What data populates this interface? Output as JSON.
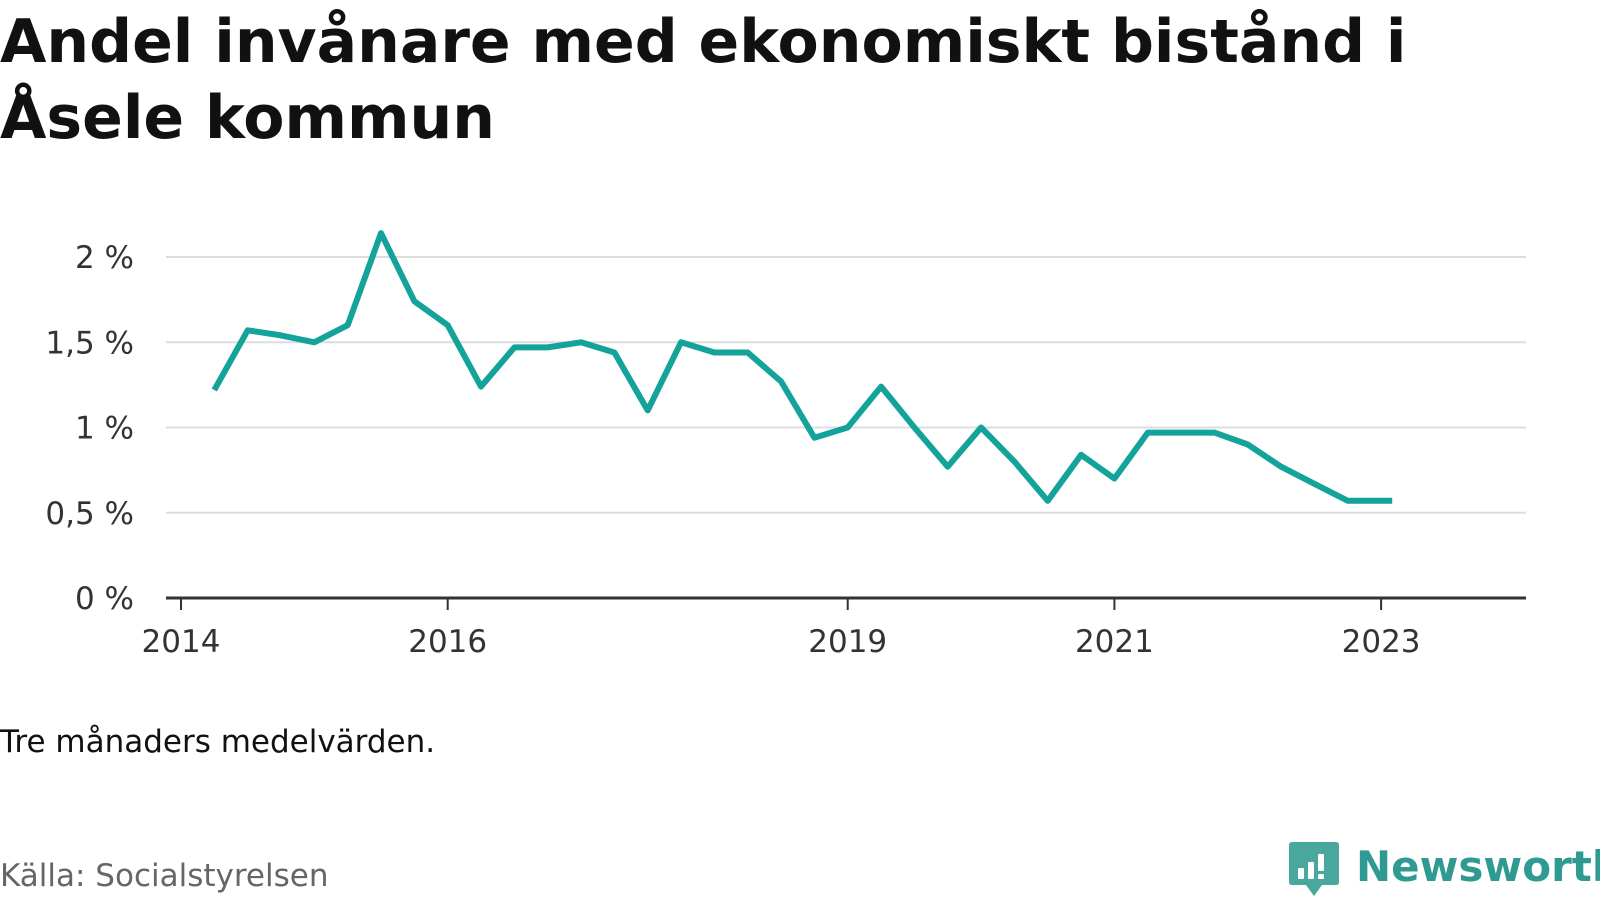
{
  "title": "Andel invånare med ekonomiskt bistånd i Åsele kommun",
  "note": "Tre månaders medelvärden.",
  "source": "Källa: Socialstyrelsen",
  "brand": {
    "name": "Newsworthy",
    "color": "#2e9a92"
  },
  "colors": {
    "line": "#14a39a",
    "grid": "#dddddd",
    "axis": "#333333"
  },
  "chart_data": {
    "type": "line",
    "title": "Andel invånare med ekonomiskt bistånd i Åsele kommun",
    "xlabel": "",
    "ylabel": "",
    "ylim": [
      0,
      2
    ],
    "xlim": [
      "2014-01",
      "2023-09"
    ],
    "y_ticks": [
      0,
      0.5,
      1,
      1.5,
      2
    ],
    "y_tick_labels": [
      "0 %",
      "0,5 %",
      "1 %",
      "1,5 %",
      "2 %"
    ],
    "x_ticks": [
      "2014-01",
      "2016-01",
      "2019-01",
      "2021-01",
      "2023-01"
    ],
    "x_tick_labels": [
      "2014",
      "2016",
      "2019",
      "2021",
      "2023"
    ],
    "grid": true,
    "series": [
      {
        "values": [
          {
            "x": "2014-04",
            "y": 1.22
          },
          {
            "x": "2014-07",
            "y": 1.57
          },
          {
            "x": "2014-10",
            "y": 1.54
          },
          {
            "x": "2015-01",
            "y": 1.5
          },
          {
            "x": "2015-04",
            "y": 1.6
          },
          {
            "x": "2015-07",
            "y": 2.14
          },
          {
            "x": "2015-10",
            "y": 1.74
          },
          {
            "x": "2016-01",
            "y": 1.6
          },
          {
            "x": "2016-04",
            "y": 1.24
          },
          {
            "x": "2016-07",
            "y": 1.47
          },
          {
            "x": "2016-10",
            "y": 1.47
          },
          {
            "x": "2017-01",
            "y": 1.5
          },
          {
            "x": "2017-04",
            "y": 1.44
          },
          {
            "x": "2017-07",
            "y": 1.1
          },
          {
            "x": "2017-10",
            "y": 1.5
          },
          {
            "x": "2018-01",
            "y": 1.44
          },
          {
            "x": "2018-04",
            "y": 1.44
          },
          {
            "x": "2018-07",
            "y": 1.27
          },
          {
            "x": "2018-10",
            "y": 0.94
          },
          {
            "x": "2019-01",
            "y": 1.0
          },
          {
            "x": "2019-04",
            "y": 1.24
          },
          {
            "x": "2019-07",
            "y": 1.0
          },
          {
            "x": "2019-10",
            "y": 0.77
          },
          {
            "x": "2020-01",
            "y": 1.0
          },
          {
            "x": "2020-04",
            "y": 0.8
          },
          {
            "x": "2020-07",
            "y": 0.57
          },
          {
            "x": "2020-10",
            "y": 0.84
          },
          {
            "x": "2021-01",
            "y": 0.7
          },
          {
            "x": "2021-04",
            "y": 0.97
          },
          {
            "x": "2021-07",
            "y": 0.97
          },
          {
            "x": "2021-10",
            "y": 0.97
          },
          {
            "x": "2022-01",
            "y": 0.9
          },
          {
            "x": "2022-04",
            "y": 0.77
          },
          {
            "x": "2022-07",
            "y": 0.67
          },
          {
            "x": "2022-10",
            "y": 0.57
          },
          {
            "x": "2023-01",
            "y": 0.57
          },
          {
            "x": "2023-02",
            "y": 0.57
          }
        ]
      }
    ]
  }
}
